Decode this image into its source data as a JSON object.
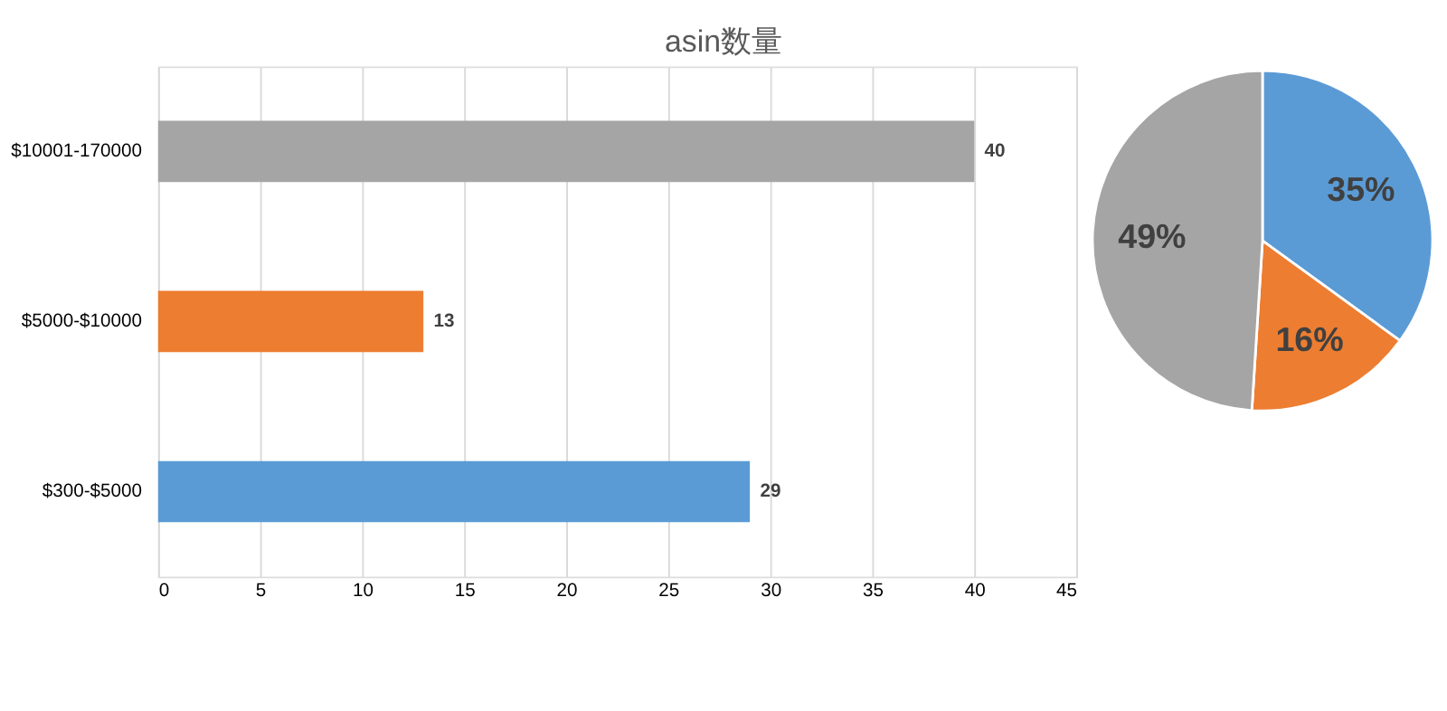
{
  "chart_data": [
    {
      "type": "bar",
      "title": "asin数量",
      "orientation": "horizontal",
      "categories": [
        "$10001-170000",
        "$5000-$10000",
        "$300-$5000"
      ],
      "values": [
        40,
        13,
        29
      ],
      "colors": [
        "#a5a5a5",
        "#ed7d31",
        "#5b9bd5"
      ],
      "xlim": [
        0,
        45
      ],
      "xticks": [
        0,
        5,
        10,
        15,
        20,
        25,
        30,
        35,
        40,
        45
      ],
      "grid": "x",
      "data_labels": true
    },
    {
      "type": "pie",
      "categories": [
        null,
        null,
        null
      ],
      "values": [
        35,
        16,
        49
      ],
      "colors": [
        "#5b9bd5",
        "#ed7d31",
        "#a5a5a5"
      ],
      "value_labels": [
        "35%",
        "16%",
        "49%"
      ]
    }
  ]
}
